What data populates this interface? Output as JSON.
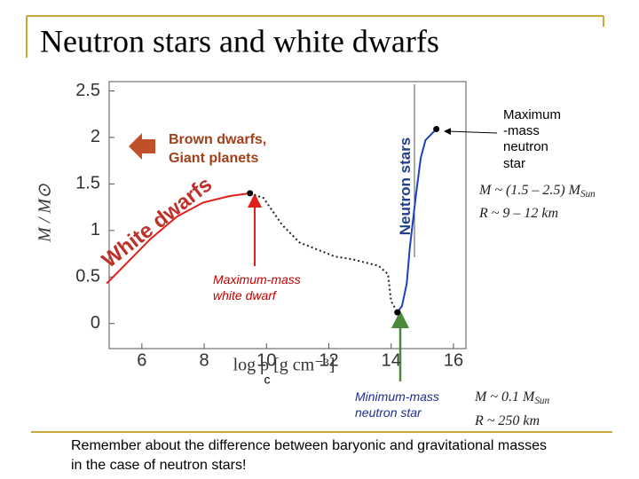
{
  "chart_data": {
    "type": "line",
    "title": "Neutron stars and white dwarfs",
    "xlabel": "log ρ [g cm⁻³]",
    "xlabel_sub": "c",
    "ylabel": "M / M⊙",
    "xlim": [
      4.95,
      16.4
    ],
    "ylim": [
      -0.27,
      2.6
    ],
    "xticks": [
      6,
      8,
      10,
      12,
      14,
      16
    ],
    "yticks": [
      0,
      0.5,
      1,
      1.5,
      2,
      2.5
    ],
    "series": [
      {
        "color": "#e0201b",
        "style": "solid",
        "x": [
          4.87,
          6.28,
          7.13,
          7.97,
          8.82,
          9.47
        ],
        "values": [
          0.43,
          0.91,
          1.15,
          1.3,
          1.37,
          1.4
        ]
      },
      {
        "color": "#222222",
        "style": "dotted",
        "x": [
          9.47,
          9.9,
          10.5,
          11.06,
          12.2,
          12.75,
          13.6,
          13.9,
          14.0,
          14.2
        ],
        "values": [
          1.4,
          1.35,
          1.06,
          0.87,
          0.72,
          0.69,
          0.62,
          0.53,
          0.24,
          0.12
        ]
      },
      {
        "color": "#1f3fbf",
        "style": "solid",
        "x": [
          14.2,
          14.35,
          14.5,
          14.6,
          14.8,
          14.95,
          15.1,
          15.45
        ],
        "values": [
          0.12,
          0.19,
          0.43,
          0.82,
          1.39,
          1.78,
          1.97,
          2.09
        ]
      }
    ],
    "markers": [
      {
        "x": 9.47,
        "y": 1.4
      },
      {
        "x": 14.2,
        "y": 0.12
      },
      {
        "x": 15.45,
        "y": 2.09
      }
    ],
    "annotations": [
      {
        "text": "White dwarfs"
      },
      {
        "text": "Neutron stars"
      },
      {
        "text": "Brown dwarfs,"
      },
      {
        "text": "Giant planets"
      },
      {
        "text": "Maximum-mass"
      },
      {
        "text": "white dwarf"
      },
      {
        "text": "Maximum"
      },
      {
        "text": "-mass"
      },
      {
        "text": "neutron"
      },
      {
        "text": "star"
      },
      {
        "text": "Minimum-mass"
      },
      {
        "text": "neutron star"
      },
      {
        "text": "M ~ (1.5 – 2.5) M",
        "sub": "Sun"
      },
      {
        "text": "R ~ 9 – 12  km"
      },
      {
        "text": "M ~ 0.1 M",
        "sub": "Sun"
      },
      {
        "text": "R ~ 250  km"
      }
    ],
    "footnote": [
      "Remember about the difference between baryonic and gravitational masses",
      "in the case of neutron stars!"
    ]
  }
}
